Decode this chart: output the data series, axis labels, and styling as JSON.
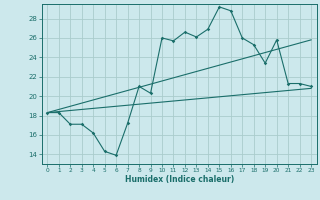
{
  "bg_color": "#cce8ec",
  "grid_color": "#aacccc",
  "line_color": "#1a6e6a",
  "xlabel": "Humidex (Indice chaleur)",
  "x_ticks": [
    0,
    1,
    2,
    3,
    4,
    5,
    6,
    7,
    8,
    9,
    10,
    11,
    12,
    13,
    14,
    15,
    16,
    17,
    18,
    19,
    20,
    21,
    22,
    23
  ],
  "xlim": [
    -0.5,
    23.5
  ],
  "ylim": [
    13.0,
    29.5
  ],
  "y_ticks": [
    14,
    16,
    18,
    20,
    22,
    24,
    26,
    28
  ],
  "curve1_x": [
    0,
    1,
    2,
    3,
    4,
    5,
    6,
    7,
    8,
    9,
    10,
    11,
    12,
    13,
    14,
    15,
    16,
    17,
    18,
    19,
    20,
    21,
    22,
    23
  ],
  "curve1_y": [
    18.3,
    18.3,
    17.1,
    17.1,
    16.2,
    14.3,
    13.9,
    17.2,
    21.0,
    20.3,
    26.0,
    25.7,
    26.6,
    26.1,
    26.9,
    29.2,
    28.8,
    26.0,
    25.3,
    23.4,
    25.8,
    21.3,
    21.3,
    21.0
  ],
  "trend1_x": [
    0,
    23
  ],
  "trend1_y": [
    18.3,
    20.8
  ],
  "trend2_x": [
    0,
    23
  ],
  "trend2_y": [
    18.3,
    25.8
  ]
}
